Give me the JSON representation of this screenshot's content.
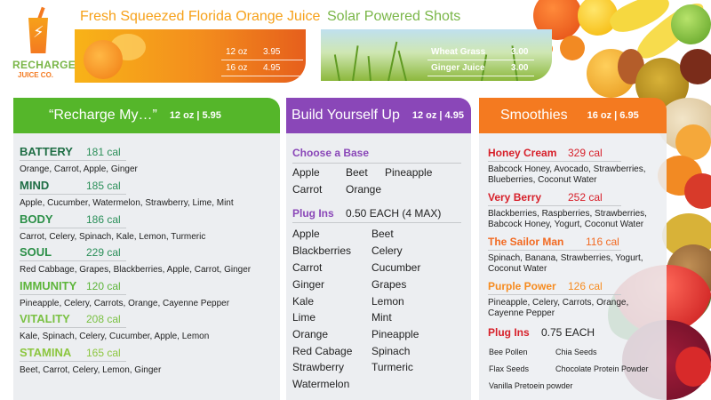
{
  "brand": {
    "name_line1": "RECHARGE",
    "name_line2": "JUICE CO."
  },
  "orange_juice": {
    "title": "Fresh Squeezed Florida Orange Juice",
    "prices": [
      {
        "size": "12 oz",
        "price": "3.95"
      },
      {
        "size": "16 oz",
        "price": "4.95"
      }
    ]
  },
  "shots": {
    "title": "Solar Powered Shots",
    "items": [
      {
        "name": "Wheat Grass",
        "price": "3.00"
      },
      {
        "name": "Ginger Juice",
        "price": "3.00"
      }
    ]
  },
  "recharge": {
    "title": "“Recharge My…”",
    "price": "12 oz  | 5.95",
    "juices": [
      {
        "name": "BATTERY",
        "cal": "181 cal",
        "ingredients": "Orange, Carrot, Apple, Ginger",
        "color": "#1f6e45"
      },
      {
        "name": "MIND",
        "cal": "185 cal",
        "ingredients": "Apple, Cucumber, Watermelon, Strawberry, Lime, Mint",
        "color": "#1f6e45"
      },
      {
        "name": "BODY",
        "cal": "186 cal",
        "ingredients": "Carrot, Celery, Spinach, Kale, Lemon, Turmeric",
        "color": "#2b8f47"
      },
      {
        "name": "SOUL",
        "cal": "229 cal",
        "ingredients": "Red Cabbage, Grapes, Blackberries, Apple, Carrot, Ginger",
        "color": "#2b8f47"
      },
      {
        "name": "IMMUNITY",
        "cal": "120 cal",
        "ingredients": "Pineapple, Celery, Carrots, Orange, Cayenne Pepper",
        "color": "#5db53a"
      },
      {
        "name": "VITALITY",
        "cal": "208 cal",
        "ingredients": "Kale, Spinach, Celery, Cucumber, Apple, Lemon",
        "color": "#7ac143"
      },
      {
        "name": "STAMINA",
        "cal": "165 cal",
        "ingredients": "Beet, Carrot, Celery, Lemon, Ginger",
        "color": "#8cc63f"
      }
    ]
  },
  "build": {
    "title": "Build Yourself Up",
    "price": "12 oz  | 4.95",
    "base_heading": "Choose a Base",
    "bases": [
      "Apple",
      "Beet",
      "Pineapple",
      "Carrot",
      "Orange"
    ],
    "plugins_heading": "Plug Ins",
    "plugins_price": "0.50 EACH (4 MAX)",
    "plugins_col1": [
      "Apple",
      "Blackberries",
      "Carrot",
      "Ginger",
      "Kale",
      "Lime",
      "Orange",
      "Red Cabage",
      "Strawberry",
      "Watermelon"
    ],
    "plugins_col2": [
      "Beet",
      "Celery",
      "Cucumber",
      "Grapes",
      "Lemon",
      "Mint",
      "Pineapple",
      "Spinach",
      "Turmeric"
    ]
  },
  "smoothies": {
    "title": "Smoothies",
    "price": "16 oz  | 6.95",
    "items": [
      {
        "name": "Honey Cream",
        "cal": "329 cal",
        "ingredients": "Babcock Honey, Avocado, Strawberries, Blueberries, Coconut Water",
        "color": "#d7202a"
      },
      {
        "name": "Very Berry",
        "cal": "252 cal",
        "ingredients": "Blackberries, Raspberries, Strawberries, Babcock Honey, Yogurt, Coconut Water",
        "color": "#d7202a"
      },
      {
        "name": "The Sailor Man",
        "cal": "116 cal",
        "ingredients": "Spinach, Banana, Strawberries, Yogurt, Coconut Water",
        "color": "#f26a22"
      },
      {
        "name": "Purple Power",
        "cal": "126 cal",
        "ingredients": "Pineapple, Celery, Carrots, Orange, Cayenne Pepper",
        "color": "#f68b1f"
      }
    ],
    "plugins_heading": "Plug Ins",
    "plugins_price": "0.75 EACH",
    "plugins": [
      "Bee Pollen",
      "Chia Seeds",
      "Flax Seeds",
      "Chocolate Protein Powder",
      "Vanilla Pretoein powder"
    ]
  }
}
